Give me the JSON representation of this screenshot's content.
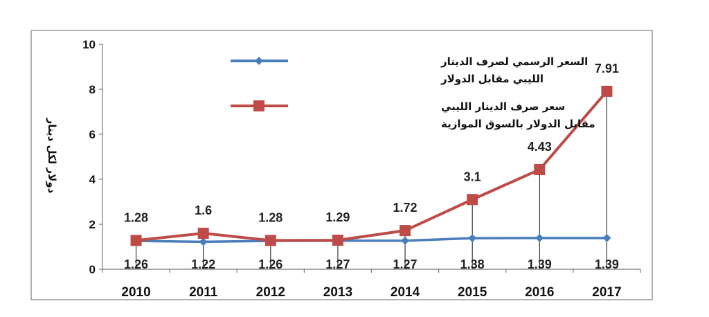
{
  "chart_data": {
    "type": "line",
    "title": "",
    "xlabel": "",
    "ylabel": "دولار لكل دينار",
    "ylim": [
      0,
      10
    ],
    "yticks": [
      "0",
      "2",
      "4",
      "6",
      "8",
      "10"
    ],
    "categories": [
      "2010",
      "2011",
      "2012",
      "2013",
      "2014",
      "2015",
      "2016",
      "2017"
    ],
    "grid": false,
    "legend_position": "top",
    "series": [
      {
        "name": "السعر الرسمي لصرف الدينار الليبي  مقابل الدولار",
        "legend_lines": [
          "السعر الرسمي لصرف الدينار",
          "الليبي  مقابل الدولار"
        ],
        "values": [
          1.26,
          1.22,
          1.26,
          1.27,
          1.27,
          1.38,
          1.39,
          1.39
        ],
        "labels": [
          "1.26",
          "1.22",
          "1.26",
          "1.27",
          "1.27",
          "1.38",
          "1.39",
          "1.39"
        ],
        "color": "#4A7EBB",
        "marker": "diamond"
      },
      {
        "name": "سعر صرف الدينار الليبي مقابل الدولار بالسوق الموازية",
        "legend_lines": [
          "سعر صرف الدينار الليبي",
          "مقابل الدولار بالسوق الموازية"
        ],
        "values": [
          1.28,
          1.6,
          1.28,
          1.29,
          1.72,
          3.1,
          4.43,
          7.91
        ],
        "labels": [
          "1.28",
          "1.6",
          "1.28",
          "1.29",
          "1.72",
          "3.1",
          "4.43",
          "7.91"
        ],
        "color": "#BE4B48",
        "marker": "square"
      }
    ]
  }
}
